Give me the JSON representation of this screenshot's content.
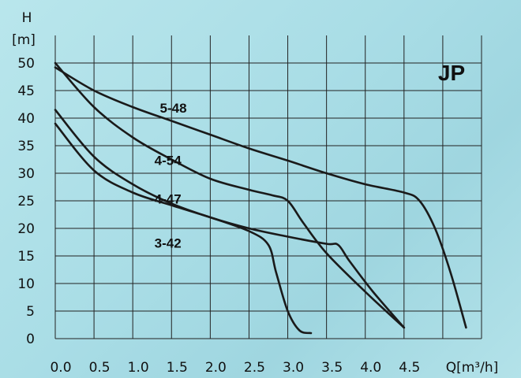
{
  "chart_data": {
    "type": "line",
    "title": "",
    "brand_label": "JP",
    "ylabel_top": "H",
    "ylabel_unit": "[m]",
    "xlabel": "Q[m³/h]",
    "xlim": [
      0,
      5.5
    ],
    "ylim": [
      0,
      50
    ],
    "grid": true,
    "x_ticks": [
      "0.0",
      "0.5",
      "1.0",
      "1.5",
      "2.0",
      "2.5",
      "3.0",
      "3.5",
      "4.0",
      "4.5"
    ],
    "x_tick_values": [
      0,
      0.5,
      1.0,
      1.5,
      2.0,
      2.5,
      3.0,
      3.5,
      4.0,
      4.5
    ],
    "y_ticks": [
      "0",
      "5",
      "10",
      "15",
      "20",
      "25",
      "30",
      "35",
      "40",
      "45",
      "50"
    ],
    "y_tick_values": [
      0,
      5,
      10,
      15,
      20,
      25,
      30,
      35,
      40,
      45,
      50
    ],
    "series": [
      {
        "name": "5-48",
        "label_at": [
          1.35,
          41
        ],
        "points": [
          [
            0,
            49.2
          ],
          [
            0.5,
            45.0
          ],
          [
            1.0,
            42.0
          ],
          [
            1.5,
            39.5
          ],
          [
            2.0,
            37.0
          ],
          [
            2.5,
            34.5
          ],
          [
            3.0,
            32.3
          ],
          [
            3.5,
            30.0
          ],
          [
            4.0,
            28.0
          ],
          [
            4.5,
            26.5
          ],
          [
            4.7,
            25.0
          ],
          [
            4.9,
            20.0
          ],
          [
            5.1,
            12.0
          ],
          [
            5.3,
            2.0
          ]
        ]
      },
      {
        "name": "4-54",
        "label_at": [
          1.28,
          31.5
        ],
        "points": [
          [
            0,
            50.0
          ],
          [
            0.5,
            42.0
          ],
          [
            1.0,
            36.5
          ],
          [
            1.5,
            32.5
          ],
          [
            2.0,
            29.0
          ],
          [
            2.5,
            27.0
          ],
          [
            2.8,
            26.0
          ],
          [
            3.0,
            25.0
          ],
          [
            3.2,
            21.0
          ],
          [
            3.5,
            15.5
          ],
          [
            4.0,
            8.5
          ],
          [
            4.5,
            2.0
          ]
        ]
      },
      {
        "name": "4-47",
        "label_at": [
          1.28,
          24.5
        ],
        "points": [
          [
            0,
            41.5
          ],
          [
            0.5,
            33.0
          ],
          [
            1.0,
            28.0
          ],
          [
            1.5,
            24.5
          ],
          [
            2.0,
            22.0
          ],
          [
            2.5,
            20.0
          ],
          [
            3.0,
            18.5
          ],
          [
            3.5,
            17.2
          ],
          [
            3.65,
            17.0
          ],
          [
            3.8,
            14.0
          ],
          [
            4.1,
            8.5
          ],
          [
            4.5,
            2.0
          ]
        ]
      },
      {
        "name": "3-42",
        "label_at": [
          1.28,
          16.5
        ],
        "points": [
          [
            0,
            39.0
          ],
          [
            0.5,
            30.5
          ],
          [
            1.0,
            26.5
          ],
          [
            1.5,
            24.2
          ],
          [
            2.0,
            22.0
          ],
          [
            2.5,
            19.5
          ],
          [
            2.75,
            17.0
          ],
          [
            2.85,
            12.0
          ],
          [
            3.0,
            5.0
          ],
          [
            3.15,
            1.5
          ],
          [
            3.3,
            1.0
          ]
        ]
      }
    ]
  }
}
